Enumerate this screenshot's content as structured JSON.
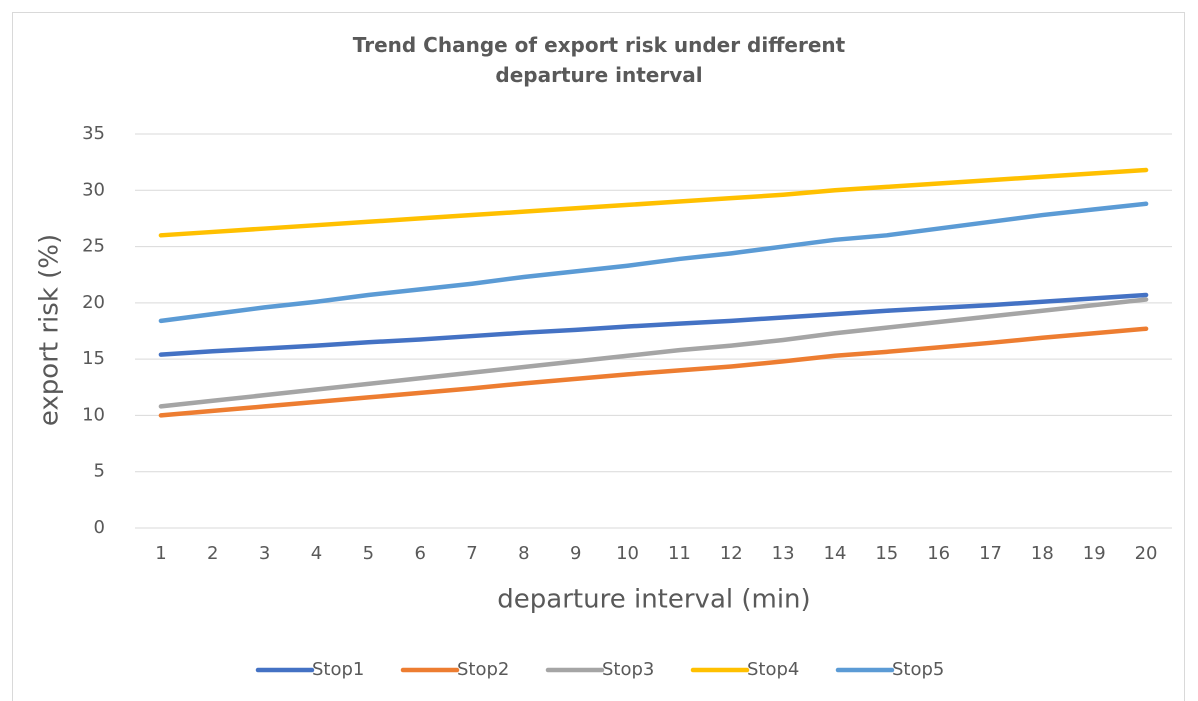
{
  "chart_data": {
    "type": "line",
    "title": "Trend Change of export risk under different departure interval",
    "x_label": "departure interval (min)",
    "y_label": "export risk (%)",
    "categories": [
      1,
      2,
      3,
      4,
      5,
      6,
      7,
      8,
      9,
      10,
      11,
      12,
      13,
      14,
      15,
      16,
      17,
      18,
      19,
      20
    ],
    "series": [
      {
        "name": "Stop1",
        "color": "#4472c4",
        "values": [
          15.4,
          15.7,
          15.95,
          16.2,
          16.5,
          16.75,
          17.05,
          17.35,
          17.6,
          17.9,
          18.15,
          18.4,
          18.7,
          19.0,
          19.3,
          19.55,
          19.8,
          20.1,
          20.4,
          20.7
        ]
      },
      {
        "name": "Stop2",
        "color": "#ed7d31",
        "values": [
          10.0,
          10.4,
          10.8,
          11.2,
          11.6,
          12.0,
          12.4,
          12.85,
          13.25,
          13.65,
          14.0,
          14.35,
          14.8,
          15.3,
          15.65,
          16.05,
          16.45,
          16.9,
          17.3,
          17.7
        ]
      },
      {
        "name": "Stop3",
        "color": "#a5a5a5",
        "values": [
          10.8,
          11.3,
          11.8,
          12.3,
          12.8,
          13.3,
          13.8,
          14.3,
          14.8,
          15.3,
          15.8,
          16.2,
          16.7,
          17.3,
          17.8,
          18.3,
          18.8,
          19.3,
          19.8,
          20.3
        ]
      },
      {
        "name": "Stop4",
        "color": "#ffc000",
        "values": [
          26.0,
          26.3,
          26.6,
          26.9,
          27.2,
          27.5,
          27.8,
          28.1,
          28.4,
          28.7,
          29.0,
          29.3,
          29.6,
          30.0,
          30.3,
          30.6,
          30.9,
          31.2,
          31.5,
          31.8
        ]
      },
      {
        "name": "Stop5",
        "color": "#5b9bd5",
        "values": [
          18.4,
          19.0,
          19.6,
          20.1,
          20.7,
          21.2,
          21.7,
          22.3,
          22.8,
          23.3,
          23.9,
          24.4,
          25.0,
          25.6,
          26.0,
          26.6,
          27.2,
          27.8,
          28.3,
          28.8
        ]
      }
    ],
    "ylim": [
      0,
      35
    ],
    "yticks": [
      0,
      5,
      10,
      15,
      20,
      25,
      30,
      35
    ],
    "grid": true,
    "legend": "bottom"
  }
}
